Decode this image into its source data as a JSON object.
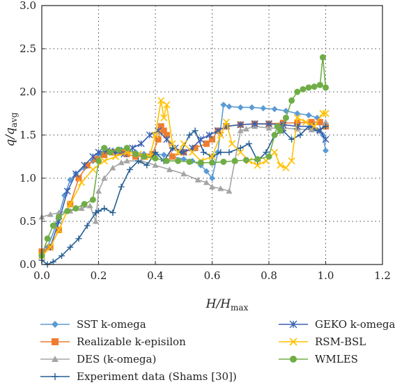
{
  "chart_data": {
    "type": "line",
    "xlabel": {
      "main": "H/H",
      "sub": "max"
    },
    "ylabel": {
      "main": "q/q",
      "sub": "avg"
    },
    "xlim": [
      0,
      1.2
    ],
    "ylim": [
      0,
      3.0
    ],
    "x_ticks": [
      "0.0",
      "0.2",
      "0.4",
      "0.6",
      "0.8",
      "1.0",
      "1.2"
    ],
    "y_ticks": [
      "0.0",
      "0.5",
      "1.0",
      "1.5",
      "2.0",
      "2.5",
      "3.0"
    ],
    "grid": "dotted",
    "legend_position": "bottom",
    "series": [
      {
        "name": "SST k-omega",
        "color": "#5b9bd5",
        "marker": "diamond",
        "x": [
          0.0,
          0.02,
          0.05,
          0.08,
          0.1,
          0.12,
          0.15,
          0.18,
          0.2,
          0.22,
          0.25,
          0.28,
          0.3,
          0.33,
          0.36,
          0.4,
          0.43,
          0.46,
          0.5,
          0.53,
          0.56,
          0.58,
          0.6,
          0.62,
          0.64,
          0.66,
          0.7,
          0.74,
          0.78,
          0.82,
          0.86,
          0.9,
          0.94,
          0.97,
          0.99,
          1.0
        ],
        "y": [
          0.1,
          0.2,
          0.45,
          0.8,
          0.98,
          1.05,
          1.12,
          1.2,
          1.28,
          1.3,
          1.32,
          1.33,
          1.32,
          1.3,
          1.28,
          1.28,
          1.27,
          1.25,
          1.22,
          1.2,
          1.15,
          1.08,
          1.0,
          1.3,
          1.85,
          1.83,
          1.82,
          1.82,
          1.81,
          1.8,
          1.78,
          1.75,
          1.73,
          1.7,
          1.5,
          1.32
        ]
      },
      {
        "name": "Realizable k-episilon",
        "color": "#ed7d31",
        "marker": "square",
        "x": [
          0.0,
          0.03,
          0.06,
          0.1,
          0.13,
          0.16,
          0.19,
          0.22,
          0.25,
          0.28,
          0.3,
          0.33,
          0.36,
          0.39,
          0.41,
          0.42,
          0.43,
          0.44,
          0.46,
          0.5,
          0.54,
          0.58,
          0.6,
          0.62,
          0.65,
          0.7,
          0.75,
          0.8,
          0.85,
          0.9,
          0.95,
          0.98,
          1.0
        ],
        "y": [
          0.15,
          0.2,
          0.4,
          0.7,
          1.0,
          1.15,
          1.22,
          1.27,
          1.3,
          1.3,
          1.28,
          1.25,
          1.25,
          1.28,
          1.45,
          1.6,
          1.55,
          1.5,
          1.25,
          1.3,
          1.35,
          1.4,
          1.45,
          1.55,
          1.6,
          1.62,
          1.63,
          1.63,
          1.64,
          1.64,
          1.65,
          1.65,
          1.6
        ]
      },
      {
        "name": "DES (k-omega)",
        "color": "#a5a5a5",
        "marker": "triangle",
        "x": [
          0.0,
          0.03,
          0.06,
          0.1,
          0.14,
          0.17,
          0.19,
          0.2,
          0.22,
          0.25,
          0.28,
          0.3,
          0.35,
          0.4,
          0.45,
          0.5,
          0.55,
          0.58,
          0.6,
          0.63,
          0.66,
          0.68,
          0.7,
          0.72,
          0.75,
          0.8,
          0.85,
          0.9,
          0.95,
          0.98,
          1.0
        ],
        "y": [
          0.55,
          0.58,
          0.6,
          0.62,
          0.65,
          0.68,
          0.5,
          0.85,
          1.0,
          1.12,
          1.18,
          1.2,
          1.2,
          1.15,
          1.1,
          1.05,
          0.98,
          0.95,
          0.9,
          0.88,
          0.85,
          1.2,
          1.55,
          1.57,
          1.6,
          1.58,
          1.58,
          1.57,
          1.56,
          1.55,
          1.65
        ]
      },
      {
        "name": "Experiment data (Shams [30])",
        "color": "#255e91",
        "marker": "plus",
        "x": [
          0.0,
          0.02,
          0.04,
          0.07,
          0.1,
          0.13,
          0.16,
          0.19,
          0.2,
          0.22,
          0.25,
          0.28,
          0.31,
          0.34,
          0.37,
          0.4,
          0.43,
          0.46,
          0.49,
          0.52,
          0.54,
          0.57,
          0.6,
          0.63,
          0.66,
          0.7,
          0.73,
          0.76,
          0.79,
          0.82,
          0.85,
          0.88,
          0.91,
          0.94,
          0.97,
          1.0
        ],
        "y": [
          0.05,
          0.0,
          0.03,
          0.1,
          0.2,
          0.3,
          0.45,
          0.6,
          0.62,
          0.65,
          0.6,
          0.9,
          1.1,
          1.2,
          1.15,
          1.3,
          1.2,
          1.35,
          1.3,
          1.5,
          1.55,
          1.3,
          1.25,
          1.3,
          1.3,
          1.35,
          1.4,
          1.2,
          1.3,
          1.5,
          1.55,
          1.45,
          1.5,
          1.6,
          1.55,
          1.6
        ]
      },
      {
        "name": "GEKO k-omega",
        "color": "#3a5fb0",
        "marker": "asterisk",
        "x": [
          0.0,
          0.03,
          0.06,
          0.09,
          0.12,
          0.15,
          0.18,
          0.2,
          0.23,
          0.26,
          0.29,
          0.32,
          0.35,
          0.38,
          0.41,
          0.44,
          0.47,
          0.5,
          0.53,
          0.56,
          0.59,
          0.62,
          0.65,
          0.7,
          0.75,
          0.8,
          0.85,
          0.9,
          0.95,
          0.98,
          1.0
        ],
        "y": [
          0.1,
          0.2,
          0.5,
          0.85,
          1.05,
          1.15,
          1.25,
          1.3,
          1.32,
          1.3,
          1.28,
          1.35,
          1.4,
          1.5,
          1.55,
          1.45,
          1.35,
          1.3,
          1.35,
          1.45,
          1.5,
          1.55,
          1.6,
          1.62,
          1.63,
          1.63,
          1.62,
          1.6,
          1.6,
          1.55,
          1.45
        ]
      },
      {
        "name": "RSM-BSL",
        "color": "#ffc000",
        "marker": "x",
        "x": [
          0.0,
          0.03,
          0.06,
          0.1,
          0.14,
          0.18,
          0.22,
          0.26,
          0.3,
          0.34,
          0.38,
          0.4,
          0.42,
          0.43,
          0.44,
          0.46,
          0.48,
          0.5,
          0.53,
          0.56,
          0.6,
          0.63,
          0.65,
          0.67,
          0.7,
          0.73,
          0.76,
          0.79,
          0.82,
          0.84,
          0.86,
          0.88,
          0.9,
          0.93,
          0.96,
          0.99,
          1.0
        ],
        "y": [
          0.1,
          0.2,
          0.4,
          0.7,
          0.95,
          1.1,
          1.2,
          1.25,
          1.3,
          1.28,
          1.25,
          1.5,
          1.9,
          1.7,
          1.85,
          1.4,
          1.3,
          1.4,
          1.3,
          1.2,
          1.25,
          1.5,
          1.65,
          1.4,
          1.3,
          1.2,
          1.15,
          1.2,
          1.3,
          1.15,
          1.12,
          1.2,
          1.7,
          1.65,
          1.6,
          1.75,
          1.75
        ]
      },
      {
        "name": "WMLES",
        "color": "#70ad47",
        "marker": "circle",
        "x": [
          0.0,
          0.02,
          0.04,
          0.06,
          0.09,
          0.12,
          0.15,
          0.18,
          0.2,
          0.22,
          0.24,
          0.27,
          0.3,
          0.33,
          0.36,
          0.4,
          0.44,
          0.48,
          0.52,
          0.56,
          0.6,
          0.64,
          0.68,
          0.72,
          0.76,
          0.8,
          0.82,
          0.83,
          0.84,
          0.86,
          0.88,
          0.9,
          0.92,
          0.94,
          0.96,
          0.98,
          0.99,
          1.0
        ],
        "y": [
          0.1,
          0.3,
          0.45,
          0.55,
          0.62,
          0.65,
          0.7,
          0.75,
          1.2,
          1.35,
          1.3,
          1.33,
          1.35,
          1.28,
          1.25,
          1.23,
          1.2,
          1.2,
          1.19,
          1.18,
          1.18,
          1.19,
          1.2,
          1.21,
          1.22,
          1.25,
          1.5,
          1.6,
          1.55,
          1.7,
          1.9,
          2.0,
          2.03,
          2.05,
          2.06,
          2.08,
          2.4,
          2.05
        ]
      }
    ]
  }
}
